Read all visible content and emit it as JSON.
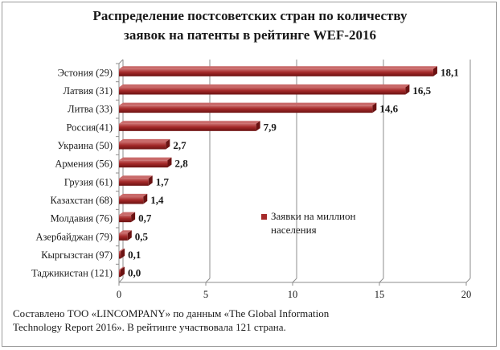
{
  "title_lines": [
    "Распределение постсоветских стран по количеству",
    "заявок на патенты в рейтинге WEF-2016"
  ],
  "caption_lines": [
    "Составлено ТОО «LINCOMPANY» по данным  «The Global Information",
    "Technology Report 2016». В рейтинге участвовала 121 страна."
  ],
  "colors": {
    "bar": "#a52a2a",
    "bar_dark": "#6b1212",
    "bar_light": "#c96a6a",
    "grid": "#8c8c8c",
    "axis": "#8c8c8c"
  },
  "chart_data": {
    "type": "bar",
    "orientation": "horizontal",
    "categories": [
      "Эстония (29)",
      "Латвия (31)",
      "Литва (33)",
      "Россия(41)",
      "Украина (50)",
      "Армения (56)",
      "Грузия (61)",
      "Казахстан (68)",
      "Молдавия (76)",
      "Азербайджан (79)",
      "Кыргызстан (97)",
      "Таджикистан (121)"
    ],
    "values": [
      18.1,
      16.5,
      14.6,
      7.9,
      2.7,
      2.8,
      1.7,
      1.4,
      0.7,
      0.5,
      0.1,
      0.0
    ],
    "value_labels": [
      "18,1",
      "16,5",
      "14,6",
      "7,9",
      "2,7",
      "2,8",
      "1,7",
      "1,4",
      "0,7",
      "0,5",
      "0,1",
      "0,0"
    ],
    "series": [
      {
        "name": "Заявки на миллион населения",
        "values": [
          18.1,
          16.5,
          14.6,
          7.9,
          2.7,
          2.8,
          1.7,
          1.4,
          0.7,
          0.5,
          0.1,
          0.0
        ]
      }
    ],
    "legend_lines": [
      "Заявки на миллион",
      "населения"
    ],
    "legend_position": "right-middle",
    "xlim": [
      0,
      20
    ],
    "xticks": [
      0,
      5,
      10,
      15,
      20
    ],
    "xtick_labels": [
      "0",
      "5",
      "10",
      "15",
      "20"
    ],
    "grid": "vertical"
  }
}
